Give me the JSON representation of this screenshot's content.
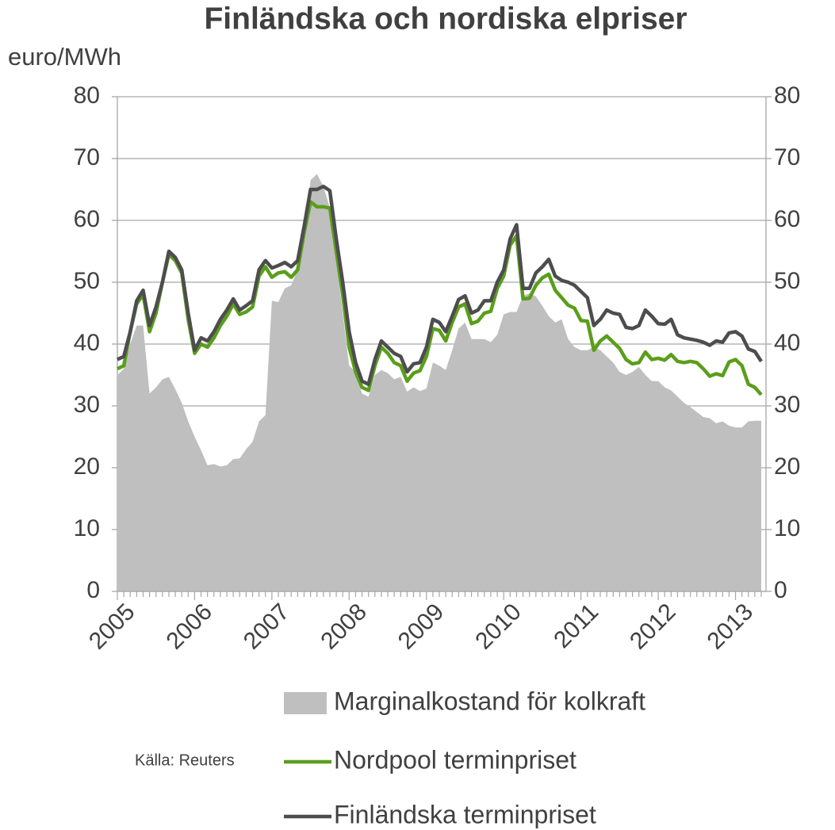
{
  "chart_data": {
    "type": "line",
    "title": "Finländska och nordiska elpriser",
    "y_label": "euro/MWh",
    "source": "Källa: Reuters",
    "categories": [
      "2005",
      null,
      null,
      null,
      null,
      null,
      null,
      null,
      null,
      null,
      null,
      null,
      "2006",
      null,
      null,
      null,
      null,
      null,
      null,
      null,
      null,
      null,
      null,
      null,
      "2007",
      null,
      null,
      null,
      null,
      null,
      null,
      null,
      null,
      null,
      null,
      null,
      "2008",
      null,
      null,
      null,
      null,
      null,
      null,
      null,
      null,
      null,
      null,
      null,
      "2009",
      null,
      null,
      null,
      null,
      null,
      null,
      null,
      null,
      null,
      null,
      null,
      "2010",
      null,
      null,
      null,
      null,
      null,
      null,
      null,
      null,
      null,
      null,
      null,
      "2011",
      null,
      null,
      null,
      null,
      null,
      null,
      null,
      null,
      null,
      null,
      null,
      "2012",
      null,
      null,
      null,
      null,
      null,
      null,
      null,
      null,
      null,
      null,
      null,
      "2013",
      null,
      null,
      null,
      null
    ],
    "ylim": [
      0,
      80
    ],
    "yticks": [
      0,
      10,
      20,
      30,
      40,
      50,
      60,
      70,
      80
    ],
    "y2lim": [
      0,
      80
    ],
    "y2ticks": [
      0,
      10,
      20,
      30,
      40,
      50,
      60,
      70,
      80
    ],
    "grid": true,
    "series": [
      {
        "name": "Marginalkostand för kolkraft",
        "color": "#bfbfbf",
        "kind": "area",
        "values": [
          35,
          36,
          40,
          43,
          43,
          32,
          33,
          34.3,
          34.7,
          32.7,
          30.5,
          27.5,
          25,
          22.8,
          20.4,
          20.6,
          20.2,
          20.4,
          21.4,
          21.5,
          23,
          24.2,
          27.5,
          28.5,
          47,
          46.8,
          49,
          49.5,
          52,
          57,
          66.5,
          67.5,
          65.5,
          62,
          54,
          45,
          36.5,
          35.5,
          32,
          31.5,
          35,
          35.8,
          35.3,
          34.3,
          34.7,
          32.3,
          33,
          32.4,
          32.8,
          37,
          36.5,
          35.8,
          39,
          42.5,
          43.5,
          40.8,
          40.8,
          40.8,
          40.3,
          41.5,
          44.8,
          45.2,
          45.2,
          47.8,
          48.2,
          47.7,
          46.2,
          44.5,
          43.5,
          44,
          40.8,
          39.5,
          39,
          39,
          39.5,
          39,
          38,
          37,
          35.5,
          35,
          35.5,
          36.3,
          35,
          34,
          34,
          33,
          32.5,
          31.5,
          30.5,
          29.8,
          29,
          28.2,
          28,
          27.2,
          27.5,
          26.8,
          26.5,
          26.5,
          27.5,
          27.6,
          27.6
        ]
      },
      {
        "name": "Nordpool terminpriset",
        "color": "#5a9e1a",
        "kind": "line",
        "values": [
          36,
          36.5,
          42,
          46.5,
          48,
          42,
          45,
          50,
          54.5,
          53.5,
          51.5,
          44,
          38.5,
          40,
          39.5,
          41,
          43,
          44.5,
          46.5,
          44.8,
          45.2,
          46,
          51,
          52.5,
          50.8,
          51.5,
          51.7,
          50.8,
          52,
          58,
          63,
          62.2,
          62.2,
          62,
          55,
          48,
          39.5,
          35.5,
          33,
          32.5,
          36.5,
          39.5,
          38.5,
          37,
          36.5,
          34,
          35.3,
          35.7,
          38,
          42.5,
          42.2,
          40.5,
          43.5,
          46,
          46.5,
          43.3,
          43.7,
          45,
          45.3,
          49,
          51,
          56,
          57.5,
          47.3,
          47.4,
          49.5,
          50.7,
          51.3,
          48.7,
          47.5,
          46.3,
          45.8,
          43.8,
          43.7,
          39,
          40.5,
          41.3,
          40.3,
          39.3,
          37.5,
          36.8,
          37,
          38.7,
          37.5,
          37.7,
          37.4,
          38.3,
          37.2,
          37,
          37.2,
          37,
          36,
          34.8,
          35.2,
          34.9,
          37.1,
          37.5,
          36.5,
          33.5,
          33,
          31.8
        ]
      },
      {
        "name": "Finländska terminpriset",
        "color": "#4d4d4f",
        "kind": "line",
        "values": [
          37.5,
          38,
          42,
          47,
          48.7,
          43,
          46,
          50,
          55,
          54,
          52,
          45,
          39,
          41,
          40.5,
          42,
          44,
          45.5,
          47.3,
          45.5,
          46.2,
          47,
          52,
          53.5,
          52.3,
          52.7,
          53.2,
          52.5,
          53.5,
          59,
          65,
          65,
          65.5,
          64.8,
          57,
          50,
          42,
          37,
          34,
          33.5,
          37.5,
          40.5,
          39.5,
          38.5,
          38,
          35.5,
          36.8,
          37,
          39.5,
          44,
          43.5,
          42,
          44.5,
          47.2,
          47.8,
          45,
          45.5,
          47,
          47,
          50,
          52,
          57,
          59.3,
          49,
          49,
          51.5,
          52.5,
          53.7,
          51,
          50.3,
          50,
          49.5,
          48.5,
          47.5,
          43,
          44,
          45.5,
          45,
          44.8,
          42.7,
          42.5,
          43,
          45.5,
          44.5,
          43.3,
          43.2,
          44,
          41.5,
          41,
          40.8,
          40.6,
          40.3,
          39.8,
          40.5,
          40.3,
          41.8,
          42,
          41.3,
          39.2,
          38.8,
          37.2
        ]
      }
    ]
  }
}
